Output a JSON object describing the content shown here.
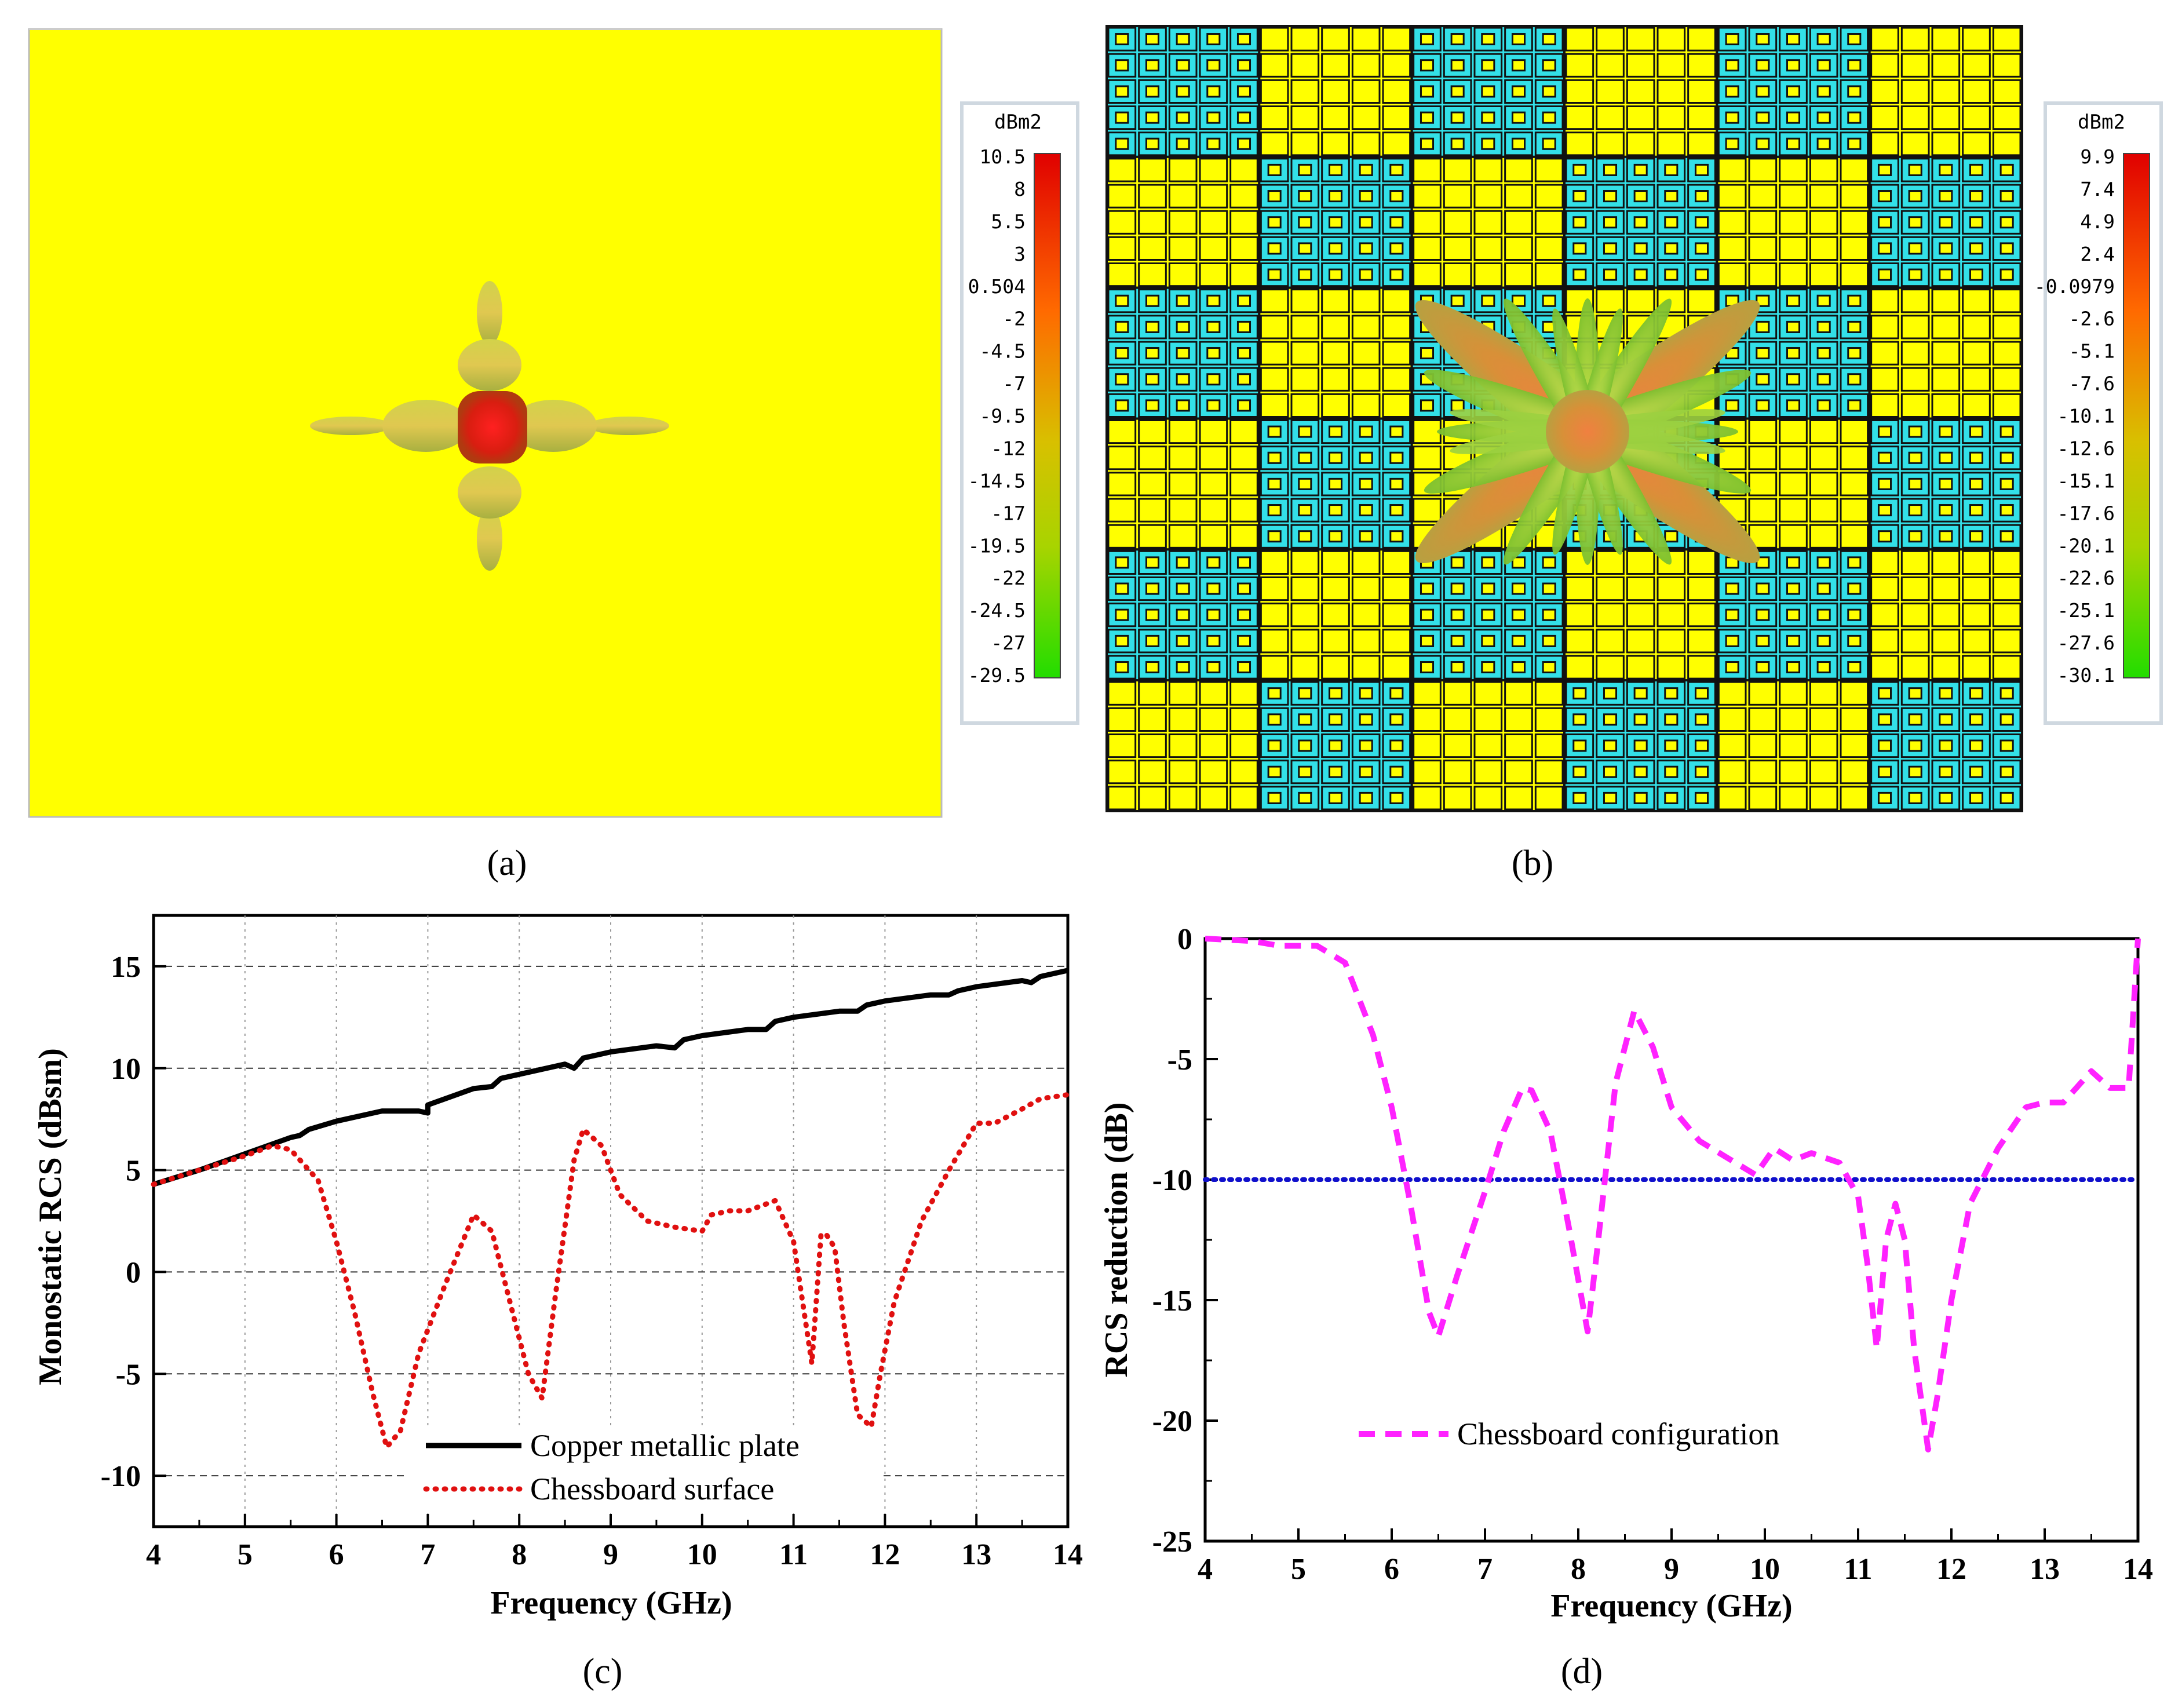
{
  "panels": {
    "a": {
      "caption": "(a)"
    },
    "b": {
      "caption": "(b)"
    },
    "c": {
      "caption": "(c)"
    },
    "d": {
      "caption": "(d)"
    }
  },
  "colorbar_a": {
    "unit": "dBm2",
    "ticks": [
      "10.5",
      "8",
      "5.5",
      "3",
      "0.504",
      "-2",
      "-4.5",
      "-7",
      "-9.5",
      "-12",
      "-14.5",
      "-17",
      "-19.5",
      "-22",
      "-24.5",
      "-27",
      "-29.5"
    ]
  },
  "colorbar_b": {
    "unit": "dBm2",
    "ticks": [
      "9.9",
      "7.4",
      "4.9",
      "2.4",
      "-0.0979",
      "-2.6",
      "-5.1",
      "-7.6",
      "-10.1",
      "-12.6",
      "-15.1",
      "-17.6",
      "-20.1",
      "-22.6",
      "-25.1",
      "-27.6",
      "-30.1"
    ]
  },
  "colors": {
    "yellow": "#ffff00",
    "cyan": "#33e0e8",
    "copper": "#000000",
    "chess": "#e01010",
    "reduction": "#ff22ff",
    "threshold": "#1010cc"
  },
  "chart_data": [
    {
      "id": "c",
      "type": "line",
      "xlabel": "Frequency (GHz)",
      "ylabel": "Monostatic RCS (dBsm)",
      "xlim": [
        4,
        14
      ],
      "ylim": [
        -12.5,
        17.5
      ],
      "xticks": [
        4,
        5,
        6,
        7,
        8,
        9,
        10,
        11,
        12,
        13,
        14
      ],
      "yticks": [
        -10,
        -5,
        0,
        5,
        10,
        15
      ],
      "grid": true,
      "legend_position": "bottom-center",
      "series": [
        {
          "name": "Copper metallic plate",
          "style": "solid",
          "x": [
            4,
            4.5,
            5,
            5.5,
            5.6,
            5.7,
            6,
            6.5,
            6.9,
            7,
            7,
            7.5,
            7.7,
            7.8,
            8.5,
            8.6,
            8.7,
            9,
            9.5,
            9.7,
            9.8,
            10,
            10.5,
            10.7,
            10.8,
            11,
            11.5,
            11.7,
            11.8,
            12,
            12.5,
            12.7,
            12.8,
            13,
            13.5,
            13.6,
            13.7,
            14
          ],
          "values": [
            4.3,
            5.0,
            5.8,
            6.6,
            6.7,
            7.0,
            7.4,
            7.9,
            7.9,
            7.8,
            8.2,
            9.0,
            9.1,
            9.5,
            10.2,
            10.0,
            10.5,
            10.8,
            11.1,
            11.0,
            11.4,
            11.6,
            11.9,
            11.9,
            12.3,
            12.5,
            12.8,
            12.8,
            13.1,
            13.3,
            13.6,
            13.6,
            13.8,
            14.0,
            14.3,
            14.2,
            14.5,
            14.8
          ]
        },
        {
          "name": "Chessboard surface",
          "style": "dotted",
          "x": [
            4,
            4.5,
            5,
            5.3,
            5.5,
            5.8,
            6,
            6.2,
            6.4,
            6.55,
            6.7,
            6.9,
            7.2,
            7.5,
            7.7,
            7.9,
            8.1,
            8.25,
            8.4,
            8.6,
            8.7,
            8.9,
            9.1,
            9.4,
            9.7,
            10,
            10.1,
            10.3,
            10.5,
            10.8,
            11,
            11.2,
            11.3,
            11.35,
            11.45,
            11.55,
            11.7,
            11.85,
            11.95,
            12.1,
            12.4,
            12.7,
            13,
            13.2,
            13.5,
            13.7,
            14
          ],
          "values": [
            4.3,
            5.0,
            5.7,
            6.2,
            6.0,
            4.5,
            1.5,
            -2,
            -6,
            -8.6,
            -7.8,
            -4,
            -0.5,
            2.8,
            2.0,
            -1.5,
            -5,
            -6.2,
            -1,
            5.5,
            7.0,
            6.2,
            3.8,
            2.5,
            2.2,
            2.0,
            2.8,
            3.0,
            3.0,
            3.5,
            1.5,
            -4.5,
            1.8,
            1.9,
            1.2,
            -2.5,
            -7.0,
            -7.6,
            -5,
            -1.5,
            2.5,
            5.0,
            7.3,
            7.3,
            8.0,
            8.5,
            8.7
          ]
        }
      ]
    },
    {
      "id": "d",
      "type": "line",
      "xlabel": "Frequency (GHz)",
      "ylabel": "RCS reduction (dB)",
      "xlim": [
        4,
        14
      ],
      "ylim": [
        -25,
        0
      ],
      "xticks": [
        4,
        5,
        6,
        7,
        8,
        9,
        10,
        11,
        12,
        13,
        14
      ],
      "yticks": [
        0,
        -5,
        -10,
        -15,
        -20,
        -25
      ],
      "grid": false,
      "legend_position": "bottom-center",
      "threshold": -10,
      "series": [
        {
          "name": "Chessboard configuration",
          "style": "dashed",
          "x": [
            4,
            4.5,
            4.8,
            5.2,
            5.5,
            5.8,
            6.0,
            6.2,
            6.4,
            6.5,
            6.7,
            7.0,
            7.2,
            7.4,
            7.5,
            7.7,
            7.9,
            8.1,
            8.2,
            8.4,
            8.6,
            8.8,
            9.0,
            9.3,
            9.6,
            9.9,
            10.1,
            10.3,
            10.5,
            10.8,
            11.0,
            11.1,
            11.2,
            11.3,
            11.4,
            11.5,
            11.6,
            11.75,
            11.85,
            12.0,
            12.2,
            12.5,
            12.8,
            13.0,
            13.2,
            13.5,
            13.7,
            13.9,
            14.0
          ],
          "values": [
            0,
            -0.1,
            -0.3,
            -0.3,
            -1,
            -4,
            -7,
            -11,
            -15.5,
            -16.5,
            -14,
            -10.5,
            -8,
            -6.2,
            -6.3,
            -8,
            -12,
            -16.3,
            -13,
            -6,
            -3,
            -4.5,
            -7,
            -8.4,
            -9.1,
            -9.8,
            -8.7,
            -9.2,
            -8.9,
            -9.3,
            -10.7,
            -13.5,
            -17,
            -12.5,
            -11,
            -12.5,
            -17,
            -21.2,
            -19,
            -15,
            -11,
            -8.7,
            -7,
            -6.8,
            -6.8,
            -5.5,
            -6.2,
            -6.2,
            0
          ]
        }
      ]
    }
  ]
}
